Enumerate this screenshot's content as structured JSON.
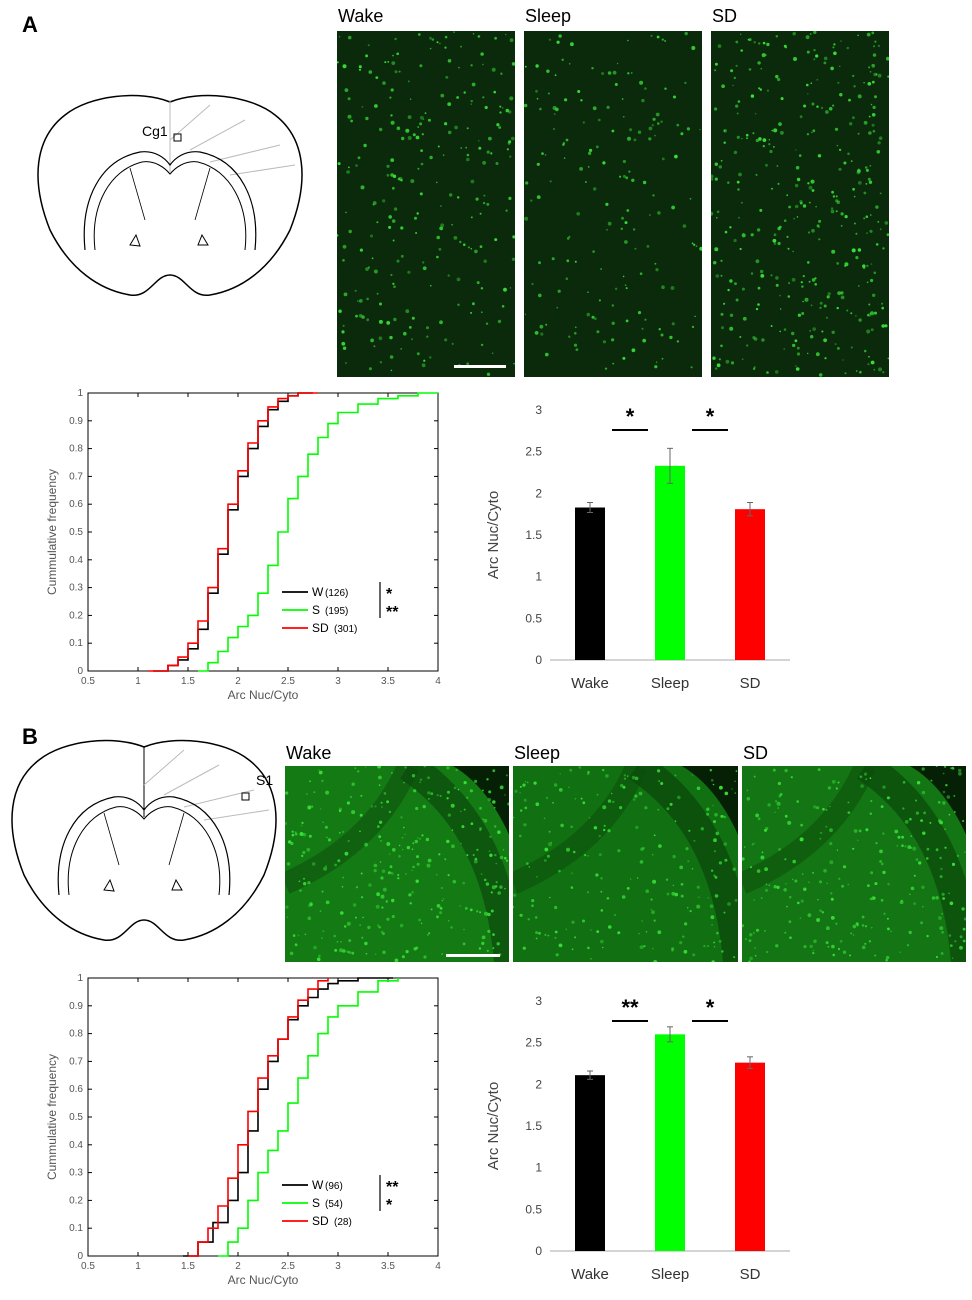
{
  "panels": {
    "A": {
      "letter": "A",
      "region_label": "Cg1",
      "micro_labels": [
        "Wake",
        "Sleep",
        "SD"
      ]
    },
    "B": {
      "letter": "B",
      "region_label": "S1",
      "micro_labels": [
        "Wake",
        "Sleep",
        "SD"
      ]
    }
  },
  "colors": {
    "wake": "#000000",
    "sleep": "#00ff00",
    "sd": "#ff0000",
    "micro_bg": "#0b2a0b",
    "micro_cell": "#38e038"
  },
  "chart_data": [
    {
      "id": "A-cdf",
      "type": "line",
      "xlabel": "Arc Nuc/Cyto",
      "ylabel": "Cummulative frequency",
      "xlim": [
        0.5,
        4
      ],
      "ylim": [
        0,
        1
      ],
      "xticks": [
        "0.5",
        "1",
        "1.5",
        "2",
        "2.5",
        "3",
        "3.5",
        "4"
      ],
      "yticks": [
        "0",
        "0.1",
        "0.2",
        "0.3",
        "0.4",
        "0.5",
        "0.6",
        "0.7",
        "0.8",
        "0.9",
        "1"
      ],
      "legend": [
        {
          "name": "W",
          "n": "(126)",
          "color": "#000000"
        },
        {
          "name": "S",
          "n": "(195)",
          "color": "#00ff00"
        },
        {
          "name": "SD",
          "n": "(301)",
          "color": "#ff0000"
        }
      ],
      "significance": [
        "*",
        "**"
      ],
      "series": [
        {
          "name": "W",
          "color": "#000000",
          "x": [
            1.15,
            1.3,
            1.4,
            1.5,
            1.6,
            1.7,
            1.8,
            1.9,
            2.0,
            2.1,
            2.2,
            2.3,
            2.4,
            2.5,
            2.6,
            2.75
          ],
          "y": [
            0,
            0.02,
            0.04,
            0.08,
            0.15,
            0.28,
            0.42,
            0.58,
            0.7,
            0.8,
            0.88,
            0.94,
            0.97,
            0.99,
            1.0,
            1.0
          ]
        },
        {
          "name": "S",
          "color": "#00ff00",
          "x": [
            1.6,
            1.7,
            1.8,
            1.9,
            2.0,
            2.1,
            2.2,
            2.3,
            2.4,
            2.5,
            2.6,
            2.7,
            2.8,
            2.9,
            3.0,
            3.2,
            3.4,
            3.6,
            3.8,
            4.0
          ],
          "y": [
            0,
            0.03,
            0.07,
            0.12,
            0.16,
            0.2,
            0.28,
            0.38,
            0.5,
            0.62,
            0.7,
            0.78,
            0.84,
            0.89,
            0.93,
            0.96,
            0.98,
            0.99,
            1.0,
            1.0
          ]
        },
        {
          "name": "SD",
          "color": "#ff0000",
          "x": [
            1.1,
            1.3,
            1.4,
            1.5,
            1.6,
            1.7,
            1.8,
            1.9,
            2.0,
            2.1,
            2.2,
            2.3,
            2.4,
            2.5,
            2.6,
            2.8
          ],
          "y": [
            0,
            0.02,
            0.05,
            0.1,
            0.18,
            0.3,
            0.44,
            0.6,
            0.72,
            0.82,
            0.9,
            0.95,
            0.98,
            0.99,
            1.0,
            1.0
          ]
        }
      ]
    },
    {
      "id": "A-bar",
      "type": "bar",
      "ylabel": "Arc Nuc/Cyto",
      "categories": [
        "Wake",
        "Sleep",
        "SD"
      ],
      "values": [
        1.83,
        2.33,
        1.81
      ],
      "errors": [
        0.06,
        0.21,
        0.08
      ],
      "colors": [
        "#000000",
        "#00ff00",
        "#ff0000"
      ],
      "ylim": [
        0,
        3
      ],
      "yticks": [
        "0",
        "0.5",
        "1",
        "1.5",
        "2",
        "2.5",
        "3"
      ],
      "significance": [
        {
          "from": 0,
          "to": 1,
          "label": "*"
        },
        {
          "from": 1,
          "to": 2,
          "label": "*"
        }
      ]
    },
    {
      "id": "B-cdf",
      "type": "line",
      "xlabel": "Arc Nuc/Cyto",
      "ylabel": "Cummulative frequency",
      "xlim": [
        0.5,
        4
      ],
      "ylim": [
        0,
        1
      ],
      "xticks": [
        "0.5",
        "1",
        "1.5",
        "2",
        "2.5",
        "3",
        "3.5",
        "4"
      ],
      "yticks": [
        "0",
        "0.1",
        "0.2",
        "0.3",
        "0.4",
        "0.5",
        "0.6",
        "0.7",
        "0.8",
        "0.9",
        "1"
      ],
      "legend": [
        {
          "name": "W",
          "n": "(96)",
          "color": "#000000"
        },
        {
          "name": "S",
          "n": "(54)",
          "color": "#00ff00"
        },
        {
          "name": "SD",
          "n": "(28)",
          "color": "#ff0000"
        }
      ],
      "significance": [
        "**",
        "*"
      ],
      "series": [
        {
          "name": "W",
          "color": "#000000",
          "x": [
            1.45,
            1.6,
            1.75,
            1.9,
            2.0,
            2.1,
            2.2,
            2.3,
            2.4,
            2.5,
            2.6,
            2.7,
            2.8,
            2.9,
            3.0,
            3.2,
            3.55
          ],
          "y": [
            0,
            0.05,
            0.12,
            0.2,
            0.3,
            0.45,
            0.6,
            0.7,
            0.78,
            0.85,
            0.9,
            0.93,
            0.96,
            0.98,
            0.99,
            1.0,
            1.0
          ]
        },
        {
          "name": "S",
          "color": "#00ff00",
          "x": [
            1.8,
            1.9,
            2.0,
            2.1,
            2.2,
            2.3,
            2.4,
            2.5,
            2.6,
            2.7,
            2.8,
            2.9,
            3.0,
            3.2,
            3.4,
            3.6
          ],
          "y": [
            0,
            0.05,
            0.1,
            0.2,
            0.3,
            0.38,
            0.45,
            0.55,
            0.64,
            0.72,
            0.8,
            0.86,
            0.9,
            0.95,
            0.99,
            1.0
          ]
        },
        {
          "name": "SD",
          "color": "#ff0000",
          "x": [
            1.5,
            1.6,
            1.7,
            1.8,
            1.9,
            2.0,
            2.1,
            2.2,
            2.3,
            2.4,
            2.5,
            2.6,
            2.7,
            2.8,
            2.9
          ],
          "y": [
            0,
            0.05,
            0.1,
            0.18,
            0.28,
            0.4,
            0.52,
            0.64,
            0.72,
            0.78,
            0.86,
            0.92,
            0.96,
            0.99,
            1.0
          ]
        }
      ]
    },
    {
      "id": "B-bar",
      "type": "bar",
      "ylabel": "Arc Nuc/Cyto",
      "categories": [
        "Wake",
        "Sleep",
        "SD"
      ],
      "values": [
        2.11,
        2.6,
        2.26
      ],
      "errors": [
        0.05,
        0.09,
        0.07
      ],
      "colors": [
        "#000000",
        "#00ff00",
        "#ff0000"
      ],
      "ylim": [
        0,
        3
      ],
      "yticks": [
        "0",
        "0.5",
        "1",
        "1.5",
        "2",
        "2.5",
        "3"
      ],
      "significance": [
        {
          "from": 0,
          "to": 1,
          "label": "**"
        },
        {
          "from": 1,
          "to": 2,
          "label": "*"
        }
      ]
    }
  ]
}
